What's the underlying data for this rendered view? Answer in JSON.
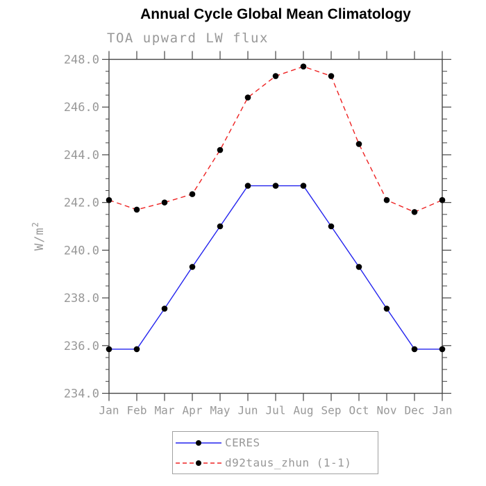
{
  "chart_data": {
    "type": "line",
    "title": "Annual Cycle Global Mean Climatology",
    "subtitle": "TOA upward LW flux",
    "ylabel": "W/m²",
    "categories": [
      "Jan",
      "Feb",
      "Mar",
      "Apr",
      "May",
      "Jun",
      "Jul",
      "Aug",
      "Sep",
      "Oct",
      "Nov",
      "Dec",
      "Jan"
    ],
    "ylim": [
      234.0,
      248.0
    ],
    "ytick_step": 2.0,
    "ytick_minor_step": 0.5,
    "ytick_labels": [
      "248.0",
      "246.0",
      "244.0",
      "242.0",
      "240.0",
      "238.0",
      "236.0",
      "234.0"
    ],
    "grid": false,
    "legend_position": "bottom-center",
    "series": [
      {
        "name": "CERES",
        "color": "#2222ee",
        "style": "solid",
        "marker": "black-dot",
        "values": [
          235.85,
          235.85,
          237.55,
          239.3,
          241.0,
          242.7,
          242.7,
          242.7,
          241.0,
          239.3,
          237.55,
          235.85,
          235.85
        ]
      },
      {
        "name": "d92taus_zhun (1-1)",
        "color": "#ee2222",
        "style": "dashed",
        "marker": "black-dot",
        "values": [
          242.1,
          241.7,
          242.0,
          242.35,
          244.2,
          246.4,
          247.3,
          247.7,
          247.3,
          244.45,
          242.1,
          241.6,
          242.1
        ]
      }
    ]
  },
  "colors": {
    "axis": "#444444",
    "label": "#989898",
    "marker": "#000000",
    "title": "#000000",
    "legend_border": "#a0a0a0",
    "background": "#ffffff"
  }
}
